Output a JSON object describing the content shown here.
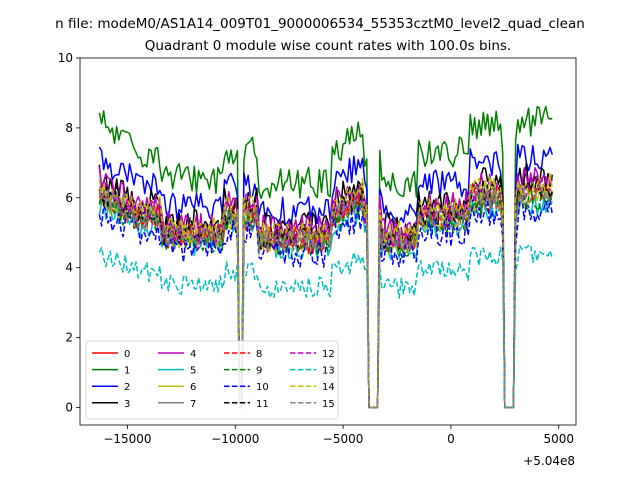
{
  "suptitle": "n file: modeM0/AS1A14_009T01_9000006534_55353cztM0_level2_quad_clean",
  "chart_data": {
    "type": "line",
    "title": "Quadrant 0 module wise count rates with 100.0s bins.",
    "xlabel": "",
    "ylabel": "",
    "x_offset_label": "+5.04e8",
    "xlim": [
      -17200,
      5800
    ],
    "ylim": [
      -0.5,
      10
    ],
    "xticks": [
      -15000,
      -10000,
      -5000,
      0,
      5000
    ],
    "xtick_labels": [
      "−15000",
      "−10000",
      "−5000",
      "0",
      "5000"
    ],
    "yticks": [
      0,
      2,
      4,
      6,
      8,
      10
    ],
    "ytick_labels": [
      "0",
      "2",
      "4",
      "6",
      "8",
      "10"
    ],
    "x_range": [
      -16300,
      4700
    ],
    "bin_seconds": 100,
    "gaps": [
      [
        -9800,
        -9650
      ],
      [
        -3800,
        -3350
      ],
      [
        2450,
        2900
      ]
    ],
    "legend": {
      "placement": "lower-left",
      "columns": 4,
      "entries": [
        {
          "label": "0",
          "color": "#ff0000",
          "dash": "solid"
        },
        {
          "label": "1",
          "color": "#008000",
          "dash": "solid"
        },
        {
          "label": "2",
          "color": "#0000ff",
          "dash": "solid"
        },
        {
          "label": "3",
          "color": "#000000",
          "dash": "solid"
        },
        {
          "label": "4",
          "color": "#bf00bf",
          "dash": "solid"
        },
        {
          "label": "5",
          "color": "#00bfbf",
          "dash": "solid"
        },
        {
          "label": "6",
          "color": "#bfbf00",
          "dash": "solid"
        },
        {
          "label": "7",
          "color": "#808080",
          "dash": "solid"
        },
        {
          "label": "8",
          "color": "#ff0000",
          "dash": "dashed"
        },
        {
          "label": "9",
          "color": "#008000",
          "dash": "dashed"
        },
        {
          "label": "10",
          "color": "#0000ff",
          "dash": "dashed"
        },
        {
          "label": "11",
          "color": "#000000",
          "dash": "dashed"
        },
        {
          "label": "12",
          "color": "#bf00bf",
          "dash": "dashed"
        },
        {
          "label": "13",
          "color": "#00bfbf",
          "dash": "dashed"
        },
        {
          "label": "14",
          "color": "#bfbf00",
          "dash": "dashed"
        },
        {
          "label": "15",
          "color": "#808080",
          "dash": "dashed"
        }
      ]
    },
    "series": [
      {
        "name": "0",
        "level": 5.4,
        "noise": 0.35
      },
      {
        "name": "1",
        "level": 7.3,
        "noise": 0.45
      },
      {
        "name": "2",
        "level": 6.4,
        "noise": 0.4
      },
      {
        "name": "3",
        "level": 5.9,
        "noise": 0.4
      },
      {
        "name": "4",
        "level": 5.8,
        "noise": 0.4
      },
      {
        "name": "5",
        "level": 5.2,
        "noise": 0.35
      },
      {
        "name": "6",
        "level": 5.4,
        "noise": 0.35
      },
      {
        "name": "7",
        "level": 5.5,
        "noise": 0.35
      },
      {
        "name": "8",
        "level": 5.5,
        "noise": 0.35
      },
      {
        "name": "9",
        "level": 5.3,
        "noise": 0.35
      },
      {
        "name": "10",
        "level": 5.0,
        "noise": 0.4
      },
      {
        "name": "11",
        "level": 5.6,
        "noise": 0.4
      },
      {
        "name": "12",
        "level": 5.6,
        "noise": 0.35
      },
      {
        "name": "13",
        "level": 3.9,
        "noise": 0.3
      },
      {
        "name": "14",
        "level": 5.7,
        "noise": 0.35
      },
      {
        "name": "15",
        "level": 5.4,
        "noise": 0.35
      }
    ]
  }
}
